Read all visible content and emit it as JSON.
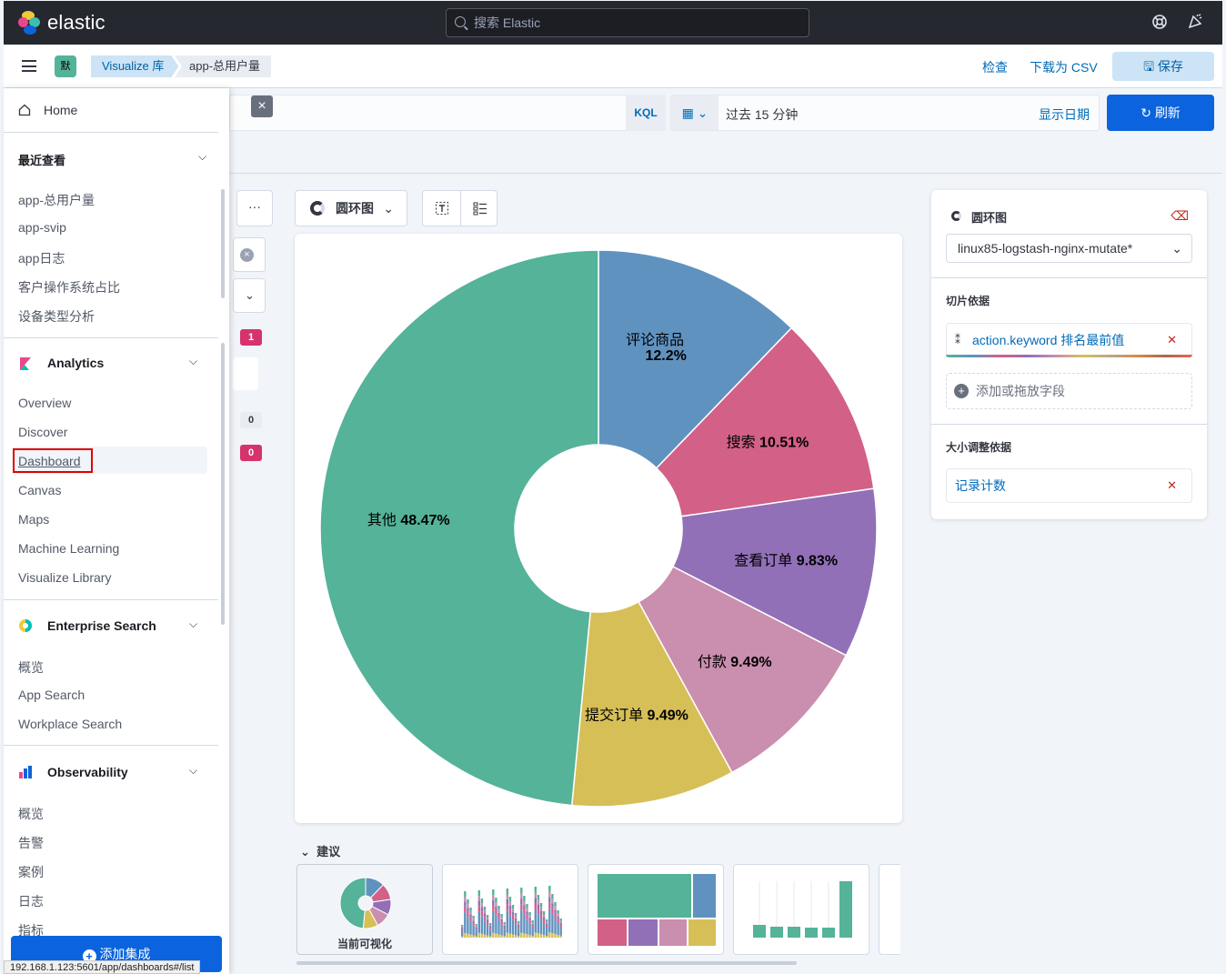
{
  "header": {
    "logo_text": "elastic",
    "search_placeholder": "搜索 Elastic",
    "icons": [
      "help-icon",
      "news-feed-icon"
    ]
  },
  "breadcrumbs": {
    "space_avatar": "默",
    "items": [
      "Visualize 库",
      "app-总用户量"
    ],
    "actions": {
      "inspect": "检查",
      "download_csv": "下载为 CSV",
      "save": "保存"
    }
  },
  "query": {
    "language": "KQL",
    "time_range": "过去 15 分钟",
    "show_dates": "显示日期",
    "refresh": "刷新"
  },
  "toolbar": {
    "chart_type": "圆环图"
  },
  "chart_data": {
    "type": "pie",
    "donut": true,
    "slices": [
      {
        "label": "评论商品",
        "value": 12.2,
        "display": "12.2%",
        "color": "#6092c0"
      },
      {
        "label": "搜索",
        "value": 10.51,
        "display": "10.51%",
        "color": "#d36086"
      },
      {
        "label": "查看订单",
        "value": 9.83,
        "display": "9.83%",
        "color": "#9170b8"
      },
      {
        "label": "付款",
        "value": 9.49,
        "display": "9.49%",
        "color": "#ca8eae"
      },
      {
        "label": "提交订单",
        "value": 9.49,
        "display": "9.49%",
        "color": "#d6bf57"
      },
      {
        "label": "其他",
        "value": 48.47,
        "display": "48.47%",
        "color": "#54b399"
      }
    ]
  },
  "config": {
    "title": "圆环图",
    "index_pattern": "linux85-logstash-nginx-mutate*",
    "slice_by_label": "切片依据",
    "slice_field": "action.keyword 排名最前值",
    "add_field": "添加或拖放字段",
    "size_by_label": "大小调整依据",
    "size_field": "记录计数"
  },
  "suggestions": {
    "label": "建议",
    "current_label": "当前可视化"
  },
  "behind": {
    "badge1": "1",
    "badge2": "0",
    "badge3": "0"
  },
  "nav": {
    "home": "Home",
    "recent": {
      "title": "最近查看",
      "items": [
        "app-总用户量",
        "app-svip",
        "app日志",
        "客户操作系统占比",
        "设备类型分析"
      ]
    },
    "analytics": {
      "title": "Analytics",
      "items": [
        "Overview",
        "Discover",
        "Dashboard",
        "Canvas",
        "Maps",
        "Machine Learning",
        "Visualize Library"
      ]
    },
    "enterprise": {
      "title": "Enterprise Search",
      "items": [
        "概览",
        "App Search",
        "Workplace Search"
      ]
    },
    "observability": {
      "title": "Observability",
      "items": [
        "概览",
        "告警",
        "案例",
        "日志",
        "指标"
      ]
    },
    "add_integrations": "添加集成"
  },
  "status_url": "192.168.1.123:5601/app/dashboards#/list"
}
